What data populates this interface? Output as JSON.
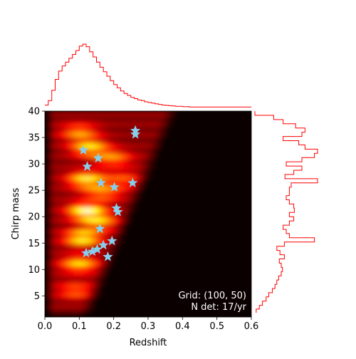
{
  "chart_data": {
    "type": "heatmap",
    "xlabel": "Redshift",
    "ylabel": "Chirp mass",
    "xlim": [
      0.0,
      0.6
    ],
    "ylim": [
      1,
      40
    ],
    "xticks": [
      "0.0",
      "0.1",
      "0.2",
      "0.3",
      "0.4",
      "0.5",
      "0.6"
    ],
    "xtick_values": [
      0.0,
      0.1,
      0.2,
      0.3,
      0.4,
      0.5,
      0.6
    ],
    "yticks": [
      "5",
      "10",
      "15",
      "20",
      "25",
      "30",
      "35",
      "40"
    ],
    "ytick_values": [
      5,
      10,
      15,
      20,
      25,
      30,
      35,
      40
    ],
    "annotation_lines": [
      "Grid: (100, 50)",
      "N det: 17/yr"
    ],
    "detections": [
      {
        "x": 0.263,
        "y": 36.3
      },
      {
        "x": 0.263,
        "y": 35.6
      },
      {
        "x": 0.112,
        "y": 32.6
      },
      {
        "x": 0.155,
        "y": 31.1
      },
      {
        "x": 0.123,
        "y": 29.5
      },
      {
        "x": 0.163,
        "y": 26.4
      },
      {
        "x": 0.202,
        "y": 25.6
      },
      {
        "x": 0.255,
        "y": 26.4
      },
      {
        "x": 0.208,
        "y": 21.6
      },
      {
        "x": 0.212,
        "y": 20.9
      },
      {
        "x": 0.16,
        "y": 17.7
      },
      {
        "x": 0.195,
        "y": 15.4
      },
      {
        "x": 0.17,
        "y": 14.6
      },
      {
        "x": 0.152,
        "y": 13.8
      },
      {
        "x": 0.138,
        "y": 13.4
      },
      {
        "x": 0.12,
        "y": 13.1
      },
      {
        "x": 0.183,
        "y": 12.4
      }
    ],
    "hotspots": [
      {
        "x": 0.12,
        "y": 21.0,
        "intensity": 1.0
      },
      {
        "x": 0.11,
        "y": 16.0,
        "intensity": 0.95
      },
      {
        "x": 0.12,
        "y": 27.0,
        "intensity": 0.85
      },
      {
        "x": 0.13,
        "y": 33.0,
        "intensity": 0.8
      },
      {
        "x": 0.1,
        "y": 36.0,
        "intensity": 0.6
      },
      {
        "x": 0.1,
        "y": 11.0,
        "intensity": 0.75
      },
      {
        "x": 0.17,
        "y": 24.5,
        "intensity": 0.55
      },
      {
        "x": 0.2,
        "y": 31.0,
        "intensity": 0.55
      },
      {
        "x": 0.09,
        "y": 6.0,
        "intensity": 0.5
      },
      {
        "x": 0.16,
        "y": 19.0,
        "intensity": 0.6
      },
      {
        "x": 0.23,
        "y": 27.0,
        "intensity": 0.4
      }
    ],
    "top_marginal": {
      "description": "redshift marginal histogram (step)",
      "x": [
        0.0,
        0.01,
        0.02,
        0.03,
        0.04,
        0.05,
        0.06,
        0.07,
        0.08,
        0.09,
        0.1,
        0.11,
        0.12,
        0.13,
        0.14,
        0.15,
        0.16,
        0.17,
        0.18,
        0.19,
        0.2,
        0.21,
        0.22,
        0.23,
        0.24,
        0.25,
        0.26,
        0.27,
        0.28,
        0.29,
        0.3,
        0.31,
        0.32,
        0.33,
        0.34,
        0.35,
        0.36,
        0.37,
        0.38,
        0.39,
        0.4,
        0.42,
        0.45,
        0.5,
        0.55,
        0.6
      ],
      "values": [
        0.05,
        0.12,
        0.28,
        0.45,
        0.58,
        0.66,
        0.72,
        0.78,
        0.84,
        0.9,
        0.97,
        1.0,
        0.96,
        0.88,
        0.8,
        0.72,
        0.64,
        0.57,
        0.5,
        0.43,
        0.37,
        0.32,
        0.27,
        0.23,
        0.2,
        0.17,
        0.15,
        0.13,
        0.12,
        0.1,
        0.09,
        0.08,
        0.07,
        0.06,
        0.05,
        0.045,
        0.04,
        0.035,
        0.03,
        0.03,
        0.025,
        0.02,
        0.02,
        0.02,
        0.02,
        0.02
      ]
    },
    "right_marginal": {
      "description": "chirp mass marginal histogram (step)",
      "y": [
        1.8,
        2.5,
        3.2,
        4.0,
        4.8,
        5.6,
        6.4,
        7.2,
        8.0,
        8.8,
        9.6,
        10.4,
        11.2,
        12.0,
        12.8,
        13.6,
        14.4,
        15.2,
        16.0,
        16.8,
        17.6,
        18.4,
        19.2,
        20.0,
        20.8,
        21.6,
        22.4,
        23.2,
        24.0,
        24.8,
        25.6,
        26.4,
        27.2,
        28.0,
        28.8,
        29.6,
        30.4,
        31.2,
        32.0,
        32.8,
        33.6,
        34.4,
        35.2,
        36.0,
        36.8,
        37.6,
        38.4,
        39.2
      ],
      "values": [
        0.02,
        0.07,
        0.12,
        0.18,
        0.22,
        0.28,
        0.32,
        0.35,
        0.38,
        0.42,
        0.44,
        0.42,
        0.39,
        0.47,
        0.4,
        0.35,
        0.47,
        0.95,
        0.55,
        0.5,
        0.45,
        0.55,
        0.62,
        0.55,
        0.63,
        0.62,
        0.55,
        0.5,
        0.55,
        0.55,
        0.58,
        1.0,
        0.48,
        0.62,
        0.75,
        0.5,
        0.75,
        0.95,
        1.0,
        0.8,
        0.7,
        0.45,
        0.75,
        0.8,
        0.65,
        0.45,
        0.3,
        0.0
      ]
    }
  }
}
